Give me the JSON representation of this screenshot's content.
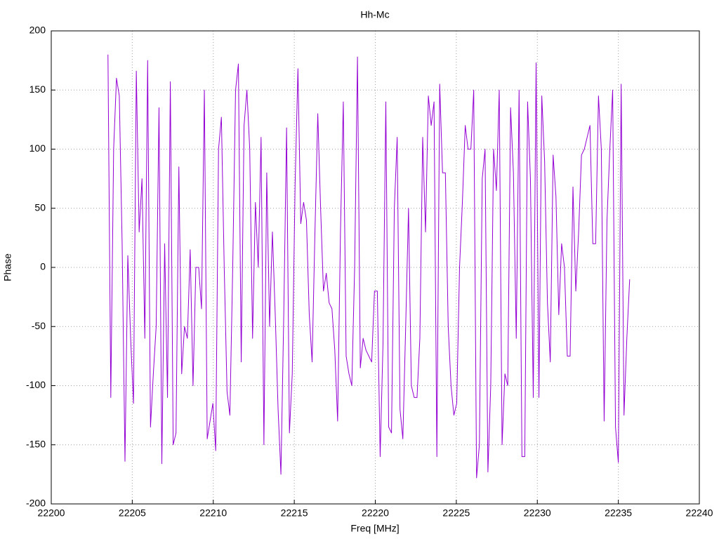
{
  "chart_data": {
    "type": "line",
    "title": "Hh-Mc",
    "x_label": "Freq [MHz]",
    "y_label": "Phase",
    "color": "#9400d3",
    "grid": true,
    "xlim": [
      22200,
      22240
    ],
    "xticks": [
      22200,
      22205,
      22210,
      22215,
      22220,
      22225,
      22230,
      22235,
      22240
    ],
    "ylim": [
      -200,
      200
    ],
    "yticks": [
      -200,
      -150,
      -100,
      -50,
      0,
      50,
      100,
      150,
      200
    ],
    "x": [
      22203.5,
      22203.675,
      22203.85,
      22204.025,
      22204.2,
      22204.375,
      22204.55,
      22204.725,
      22204.9,
      22205.075,
      22205.25,
      22205.425,
      22205.6,
      22205.775,
      22205.95,
      22206.125,
      22206.3,
      22206.475,
      22206.65,
      22206.825,
      22207,
      22207.175,
      22207.35,
      22207.525,
      22207.7,
      22207.875,
      22208.05,
      22208.225,
      22208.4,
      22208.575,
      22208.75,
      22208.925,
      22209.1,
      22209.275,
      22209.45,
      22209.625,
      22209.8,
      22209.975,
      22210.15,
      22210.325,
      22210.5,
      22210.675,
      22210.85,
      22211.025,
      22211.2,
      22211.375,
      22211.55,
      22211.725,
      22211.9,
      22212.075,
      22212.25,
      22212.425,
      22212.6,
      22212.775,
      22212.95,
      22213.125,
      22213.3,
      22213.475,
      22213.65,
      22213.825,
      22214,
      22214.175,
      22214.35,
      22214.525,
      22214.7,
      22214.875,
      22215.05,
      22215.225,
      22215.4,
      22215.575,
      22215.75,
      22215.925,
      22216.1,
      22216.275,
      22216.45,
      22216.625,
      22216.8,
      22216.975,
      22217.15,
      22217.325,
      22217.5,
      22217.675,
      22217.85,
      22218.025,
      22218.2,
      22218.375,
      22218.55,
      22218.725,
      22218.9,
      22219.075,
      22219.25,
      22219.425,
      22219.6,
      22219.775,
      22219.95,
      22220.125,
      22220.3,
      22220.475,
      22220.65,
      22220.825,
      22221,
      22221.175,
      22221.35,
      22221.525,
      22221.7,
      22221.875,
      22222.05,
      22222.225,
      22222.4,
      22222.575,
      22222.75,
      22222.925,
      22223.1,
      22223.275,
      22223.45,
      22223.625,
      22223.8,
      22223.975,
      22224.15,
      22224.325,
      22224.5,
      22224.675,
      22224.85,
      22225.025,
      22225.2,
      22225.375,
      22225.55,
      22225.725,
      22225.9,
      22226.075,
      22226.25,
      22226.425,
      22226.6,
      22226.775,
      22226.95,
      22227.125,
      22227.3,
      22227.475,
      22227.65,
      22227.825,
      22228,
      22228.175,
      22228.35,
      22228.525,
      22228.7,
      22228.875,
      22229.05,
      22229.225,
      22229.4,
      22229.575,
      22229.75,
      22229.925,
      22230.1,
      22230.275,
      22230.45,
      22230.625,
      22230.8,
      22230.975,
      22231.15,
      22231.325,
      22231.5,
      22231.675,
      22231.85,
      22232.025,
      22232.2,
      22232.375,
      22232.55,
      22232.725,
      22232.9,
      22233.075,
      22233.25,
      22233.425,
      22233.6,
      22233.775,
      22233.95,
      22234.125,
      22234.3,
      22234.475,
      22234.65,
      22234.825,
      22235,
      22235.175,
      22235.35,
      22235.525,
      22235.7
    ],
    "values": [
      180,
      -110,
      100,
      160,
      145,
      20,
      -164,
      10,
      -60,
      -115,
      166,
      30,
      75,
      -60,
      175,
      -135,
      -90,
      -50,
      135,
      -166,
      20,
      -110,
      157,
      -150,
      -140,
      85,
      -90,
      -50,
      -60,
      15,
      -100,
      0,
      0,
      -35,
      150,
      -145,
      -130,
      -115,
      -155,
      100,
      127,
      0,
      -105,
      -125,
      0,
      150,
      172,
      -80,
      120,
      150,
      100,
      -60,
      55,
      0,
      110,
      -150,
      80,
      -50,
      30,
      -40,
      -120,
      -175,
      -40,
      118,
      -140,
      -90,
      70,
      168,
      37,
      55,
      40,
      -40,
      -80,
      30,
      130,
      50,
      -20,
      -5,
      -30,
      -35,
      -70,
      -130,
      30,
      140,
      -75,
      -90,
      -100,
      0,
      178,
      -85,
      -60,
      -70,
      -75,
      -80,
      -20,
      -20,
      -160,
      -65,
      140,
      -135,
      -140,
      50,
      110,
      -120,
      -145,
      -50,
      50,
      -100,
      -110,
      -110,
      -60,
      110,
      30,
      145,
      120,
      140,
      -160,
      155,
      80,
      80,
      -50,
      -100,
      -125,
      -115,
      0,
      55,
      120,
      100,
      100,
      150,
      -178,
      -150,
      75,
      100,
      -173,
      -100,
      100,
      65,
      150,
      -150,
      -90,
      -100,
      135,
      80,
      -60,
      150,
      -160,
      -160,
      140,
      75,
      -110,
      173,
      -110,
      145,
      90,
      -30,
      -80,
      95,
      60,
      -40,
      20,
      0,
      -75,
      -75,
      68,
      -20,
      30,
      95,
      100,
      110,
      120,
      20,
      20,
      145,
      100,
      -130,
      40,
      100,
      150,
      -135,
      -165,
      155,
      -125,
      -60,
      -10
    ]
  }
}
